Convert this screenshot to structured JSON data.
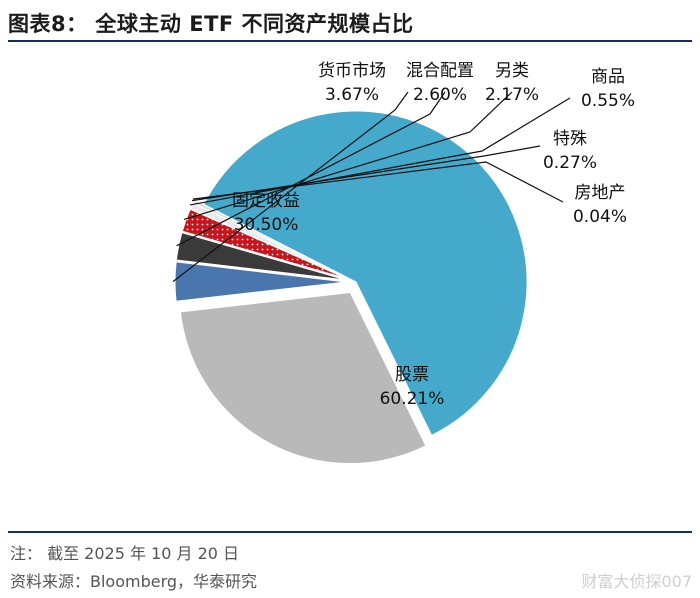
{
  "title": "图表8：  全球主动 ETF 不同资产规模占比",
  "footer": {
    "note": "注：  截至 2025 年 10 月 20 日",
    "source": "资料来源：Bloomberg，华泰研究"
  },
  "watermark": "财富大侦探007",
  "colors": {
    "rule": "#0e2f6b",
    "stocks": "#45a9cb",
    "fixed_income": "#b9b9b9",
    "money_market": "#4a76ae",
    "hybrid": "#3a3a3a",
    "alternative": "#c8141c",
    "commodity": "#e9e9e9",
    "special": "#dcdcdc",
    "real_estate": "#cfcfcf"
  },
  "chart_data": {
    "type": "pie",
    "title": "全球主动 ETF 不同资产规模占比",
    "start_angle_deg": 207,
    "slices": [
      {
        "name": "股票",
        "value": 60.21,
        "value_label": "60.21%",
        "color": "#45a9cb",
        "pattern": "none"
      },
      {
        "name": "固定收益",
        "value": 30.5,
        "value_label": "30.50%",
        "color": "#b9b9b9",
        "pattern": "none"
      },
      {
        "name": "货币市场",
        "value": 3.67,
        "value_label": "3.67%",
        "color": "#4a76ae",
        "pattern": "none"
      },
      {
        "name": "混合配置",
        "value": 2.6,
        "value_label": "2.60%",
        "color": "#3a3a3a",
        "pattern": "none"
      },
      {
        "name": "另类",
        "value": 2.17,
        "value_label": "2.17%",
        "color": "#c8141c",
        "pattern": "dots"
      },
      {
        "name": "商品",
        "value": 0.55,
        "value_label": "0.55%",
        "color": "#e9e9e9",
        "pattern": "none"
      },
      {
        "name": "特殊",
        "value": 0.27,
        "value_label": "0.27%",
        "color": "#dcdcdc",
        "pattern": "none"
      },
      {
        "name": "房地产",
        "value": 0.04,
        "value_label": "0.04%",
        "color": "#cfcfcf",
        "pattern": "none"
      }
    ]
  }
}
